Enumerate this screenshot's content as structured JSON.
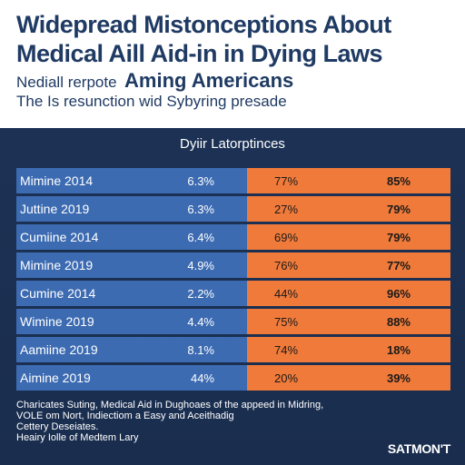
{
  "header": {
    "title_line1": "Widepread Mistonceptions About",
    "title_line2": "Medical Aill Aid-in in Dying Laws",
    "subtitle_small": "Nediall rerpote",
    "subtitle_big": "Aming Americans",
    "tagline": "The Is resunction wid Sybyring presade"
  },
  "colors": {
    "header_bg": "#ffffff",
    "title_text": "#1f3a63",
    "background": "#1d3357",
    "blue_cell": "#3c6bb2",
    "orange_cell": "#f07a3a",
    "cell_text_dark": "#1a1a1a",
    "cell_text_light": "#ffffff"
  },
  "chart_data": {
    "type": "table",
    "title": "Dyiir Latorptinces",
    "columns": [
      "",
      "",
      "",
      ""
    ],
    "rows": [
      {
        "label": "Mimine 2014",
        "v1": "6.3%",
        "v2": "77%",
        "v3": "85%"
      },
      {
        "label": "Juttine 2019",
        "v1": "6.3%",
        "v2": "27%",
        "v3": "79%"
      },
      {
        "label": "Cumiine 2014",
        "v1": "6.4%",
        "v2": "69%",
        "v3": "79%"
      },
      {
        "label": "Mimine 2019",
        "v1": "4.9%",
        "v2": "76%",
        "v3": "77%"
      },
      {
        "label": "Cumine 2014",
        "v1": "2.2%",
        "v2": "44%",
        "v3": "96%"
      },
      {
        "label": "Wimine 2019",
        "v1": "4.4%",
        "v2": "75%",
        "v3": "88%"
      },
      {
        "label": "Aamiine 2019",
        "v1": "8.1%",
        "v2": "74%",
        "v3": "18%"
      },
      {
        "label": "Aimine 2019",
        "v1": "44%",
        "v2": "20%",
        "v3": "39%"
      }
    ]
  },
  "footer": {
    "line1": "Charicates Suting, Medical Aid in Dughoaes of the appeed in Midring,",
    "line2": "VOLE om Nort, Indiectiom a Easy and Aceithadig",
    "line3": "Cettery Deseiates.",
    "line4": "Heairy Iolle of Medtem Lary",
    "brand": "SATMON'T"
  }
}
